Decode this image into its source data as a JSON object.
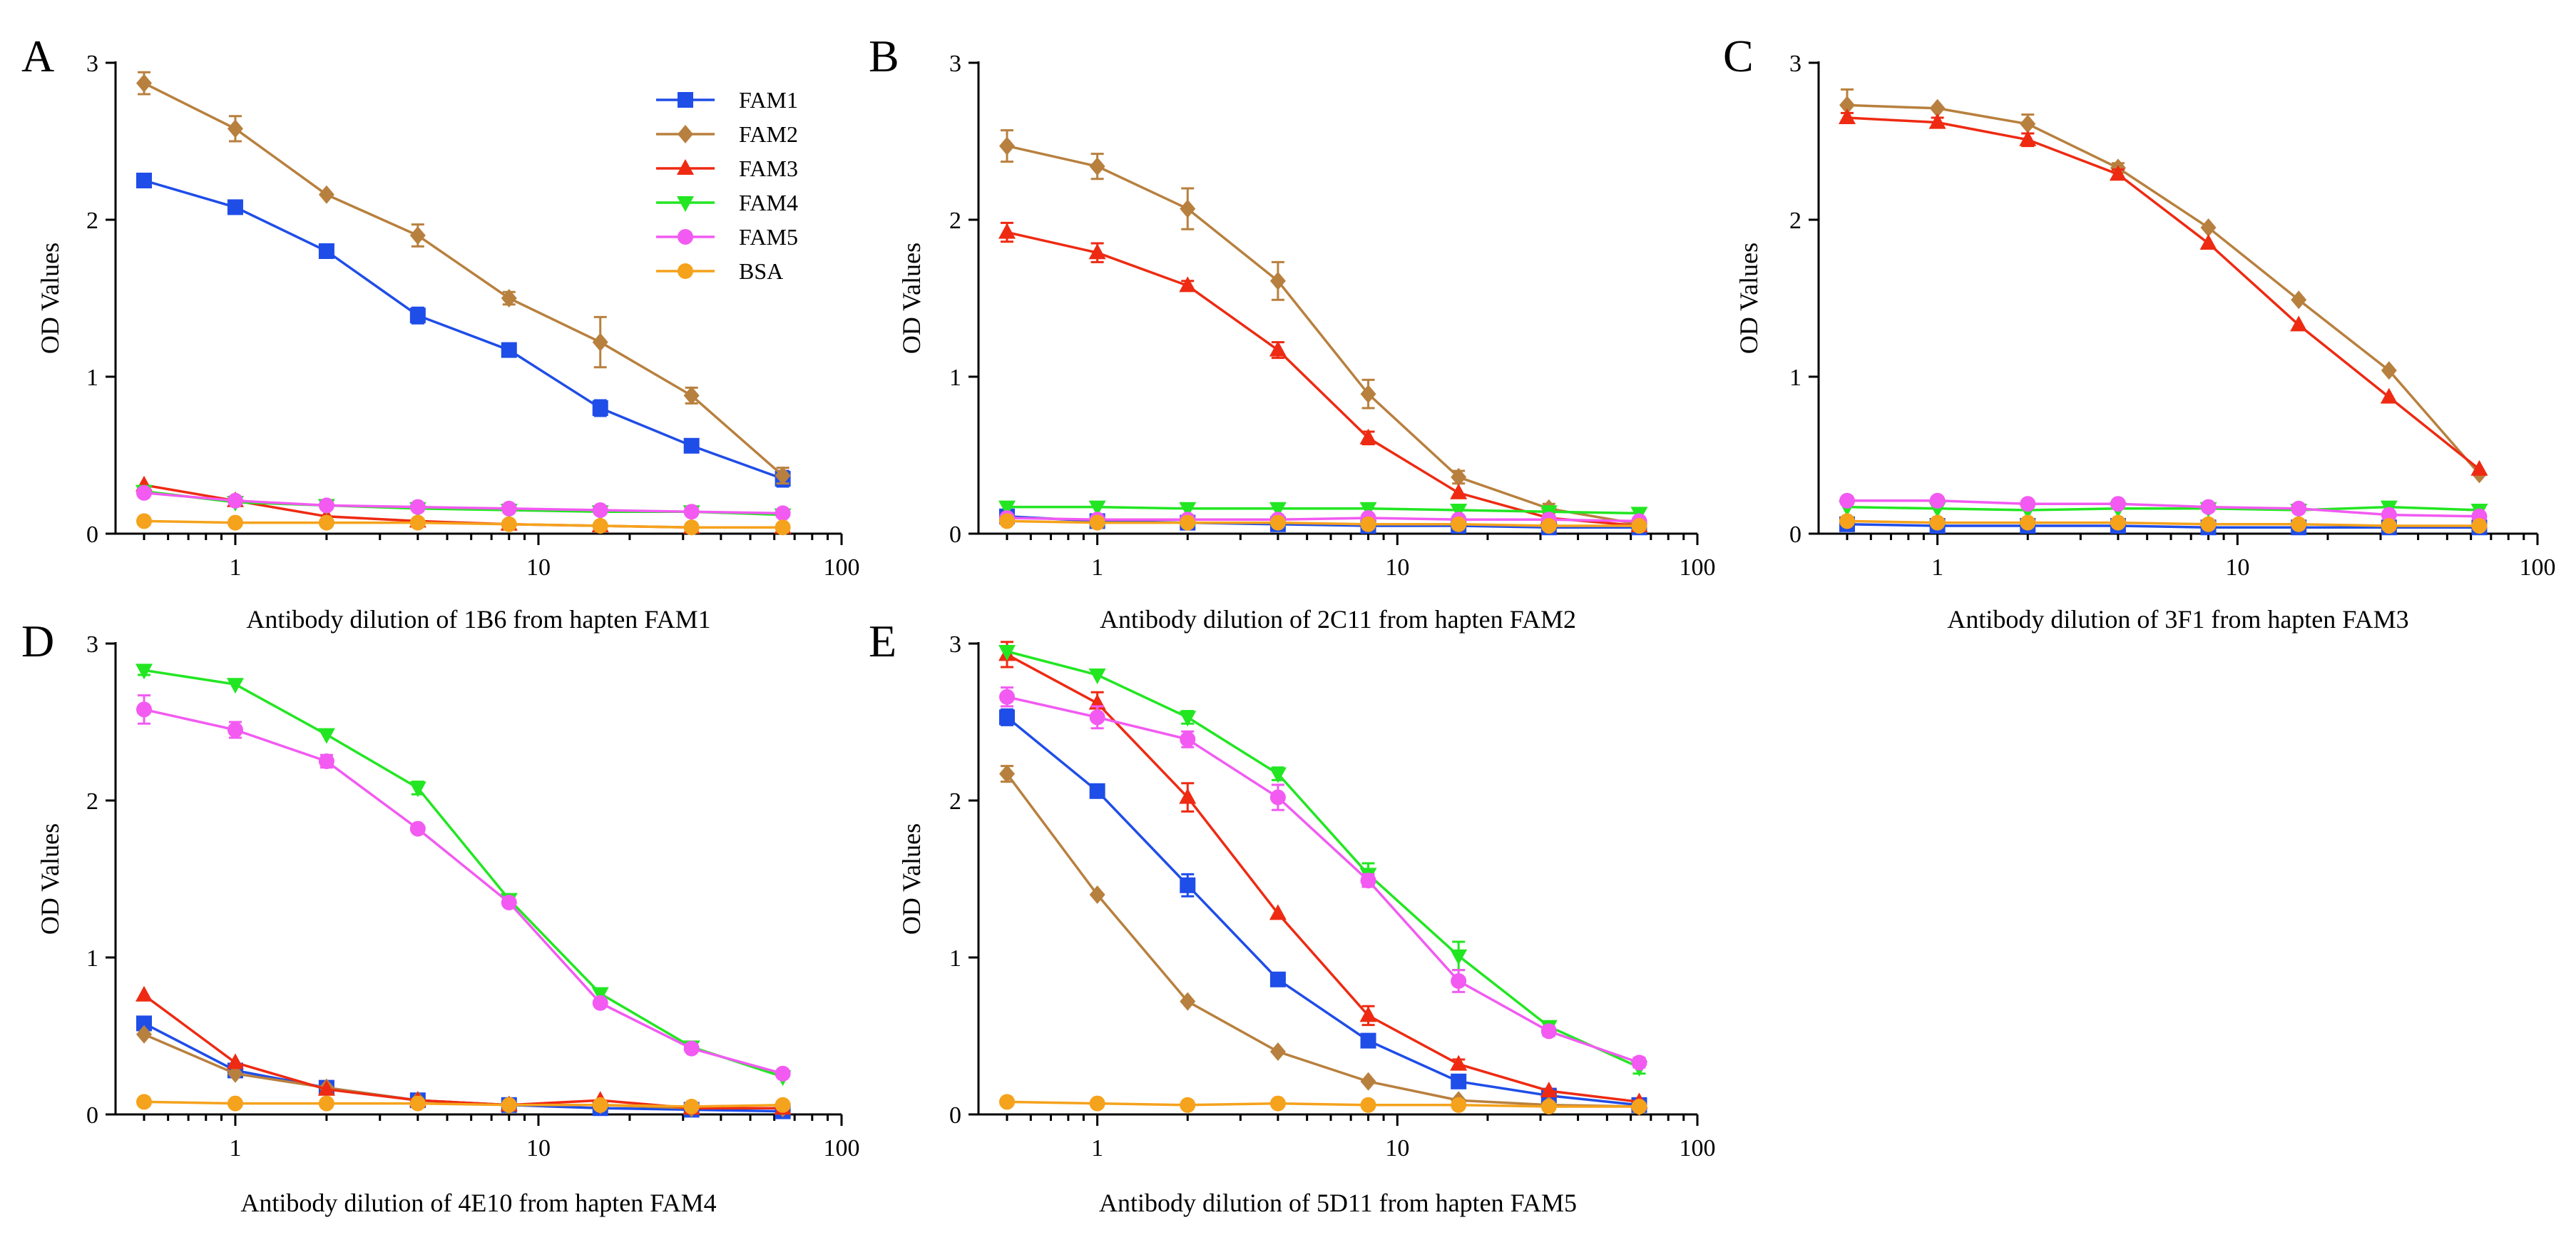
{
  "colors": {
    "FAM1": "#1f4de8",
    "FAM2": "#b8803e",
    "FAM3": "#ee2a12",
    "FAM4": "#22e622",
    "FAM5": "#f25af2",
    "BSA": "#f5a21c"
  },
  "legend": [
    {
      "name": "FAM1",
      "marker": "square"
    },
    {
      "name": "FAM2",
      "marker": "diamond"
    },
    {
      "name": "FAM3",
      "marker": "triangle"
    },
    {
      "name": "FAM4",
      "marker": "triangle-down"
    },
    {
      "name": "FAM5",
      "marker": "circle"
    },
    {
      "name": "BSA",
      "marker": "circle"
    }
  ],
  "chart_data": [
    {
      "panel": "A",
      "type": "line",
      "xscale": "log",
      "xlim": [
        0.5,
        100
      ],
      "ylim": [
        0,
        3
      ],
      "xticks": [
        "1",
        "10",
        "100"
      ],
      "yticks": [
        "0",
        "1",
        "2",
        "3"
      ],
      "xlabel": "Antibody dilution of 1B6 from hapten FAM1",
      "ylabel": "OD Values",
      "x": [
        0.5,
        1,
        2,
        4,
        8,
        16,
        32,
        64
      ],
      "series": [
        {
          "name": "FAM1",
          "values": [
            2.25,
            2.08,
            1.8,
            1.39,
            1.17,
            0.8,
            0.56,
            0.35
          ],
          "err": [
            0.02,
            0.02,
            0.02,
            0.05,
            0.04,
            0.05,
            0.02,
            0.05
          ]
        },
        {
          "name": "FAM2",
          "values": [
            2.87,
            2.58,
            2.16,
            1.9,
            1.5,
            1.22,
            0.88,
            0.37
          ],
          "err": [
            0.07,
            0.08,
            0.02,
            0.07,
            0.04,
            0.16,
            0.05,
            0.05
          ]
        },
        {
          "name": "FAM3",
          "values": [
            0.31,
            0.21,
            0.11,
            0.08,
            0.06,
            0.05,
            0.04,
            0.04
          ],
          "err": [
            0.02,
            0.01,
            0.01,
            0.01,
            0.01,
            0.01,
            0.01,
            0.01
          ]
        },
        {
          "name": "FAM4",
          "values": [
            0.27,
            0.2,
            0.18,
            0.16,
            0.15,
            0.14,
            0.14,
            0.12
          ],
          "err": [
            0.01,
            0.01,
            0.01,
            0.01,
            0.01,
            0.01,
            0.01,
            0.01
          ]
        },
        {
          "name": "FAM5",
          "values": [
            0.26,
            0.21,
            0.18,
            0.17,
            0.16,
            0.15,
            0.14,
            0.13
          ],
          "err": [
            0.01,
            0.01,
            0.01,
            0.01,
            0.01,
            0.01,
            0.01,
            0.01
          ]
        },
        {
          "name": "BSA",
          "values": [
            0.08,
            0.07,
            0.07,
            0.07,
            0.06,
            0.05,
            0.04,
            0.04
          ],
          "err": [
            0,
            0,
            0,
            0,
            0,
            0,
            0,
            0
          ]
        }
      ],
      "show_legend": true
    },
    {
      "panel": "B",
      "type": "line",
      "xscale": "log",
      "xlim": [
        0.5,
        100
      ],
      "ylim": [
        0,
        3
      ],
      "xticks": [
        "1",
        "10",
        "100"
      ],
      "yticks": [
        "0",
        "1",
        "2",
        "3"
      ],
      "xlabel": "Antibody dilution of 2C11 from hapten FAM2",
      "ylabel": "OD Values",
      "x": [
        0.5,
        1,
        2,
        4,
        8,
        16,
        32,
        64
      ],
      "series": [
        {
          "name": "FAM1",
          "values": [
            0.11,
            0.08,
            0.07,
            0.06,
            0.05,
            0.05,
            0.04,
            0.04
          ],
          "err": [
            0.01,
            0.01,
            0.01,
            0.01,
            0.01,
            0.01,
            0.01,
            0.01
          ]
        },
        {
          "name": "FAM2",
          "values": [
            2.47,
            2.34,
            2.07,
            1.61,
            0.89,
            0.36,
            0.16,
            0.06
          ],
          "err": [
            0.1,
            0.08,
            0.13,
            0.12,
            0.09,
            0.04,
            0.03,
            0.01
          ]
        },
        {
          "name": "FAM3",
          "values": [
            1.92,
            1.79,
            1.58,
            1.17,
            0.61,
            0.26,
            0.1,
            0.05
          ],
          "err": [
            0.06,
            0.06,
            0.03,
            0.05,
            0.04,
            0.02,
            0.01,
            0.01
          ]
        },
        {
          "name": "FAM4",
          "values": [
            0.17,
            0.17,
            0.16,
            0.16,
            0.16,
            0.15,
            0.14,
            0.13
          ],
          "err": [
            0.01,
            0.01,
            0.01,
            0.01,
            0.01,
            0.01,
            0.01,
            0.01
          ]
        },
        {
          "name": "FAM5",
          "values": [
            0.1,
            0.09,
            0.09,
            0.09,
            0.1,
            0.09,
            0.09,
            0.08
          ],
          "err": [
            0.01,
            0.01,
            0.01,
            0.01,
            0.01,
            0.01,
            0.01,
            0.01
          ]
        },
        {
          "name": "BSA",
          "values": [
            0.08,
            0.07,
            0.07,
            0.07,
            0.06,
            0.06,
            0.05,
            0.05
          ],
          "err": [
            0,
            0,
            0,
            0,
            0,
            0,
            0,
            0
          ]
        }
      ],
      "show_legend": false
    },
    {
      "panel": "C",
      "type": "line",
      "xscale": "log",
      "xlim": [
        0.5,
        100
      ],
      "ylim": [
        0,
        3
      ],
      "xticks": [
        "1",
        "10",
        "100"
      ],
      "yticks": [
        "0",
        "1",
        "2",
        "3"
      ],
      "xlabel": "Antibody dilution of 3F1 from hapten FAM3",
      "ylabel": "OD Values",
      "x": [
        0.5,
        1,
        2,
        4,
        8,
        16,
        32,
        64
      ],
      "series": [
        {
          "name": "FAM1",
          "values": [
            0.06,
            0.05,
            0.05,
            0.05,
            0.04,
            0.04,
            0.04,
            0.04
          ],
          "err": [
            0,
            0,
            0,
            0,
            0,
            0,
            0,
            0
          ]
        },
        {
          "name": "FAM2",
          "values": [
            2.73,
            2.71,
            2.61,
            2.33,
            1.95,
            1.49,
            1.04,
            0.38
          ],
          "err": [
            0.1,
            0.02,
            0.06,
            0.03,
            0.02,
            0.02,
            0.02,
            0.02
          ]
        },
        {
          "name": "FAM3",
          "values": [
            2.65,
            2.62,
            2.51,
            2.29,
            1.85,
            1.33,
            0.87,
            0.41
          ],
          "err": [
            0.03,
            0.03,
            0.04,
            0.03,
            0.02,
            0.02,
            0.02,
            0.02
          ]
        },
        {
          "name": "FAM4",
          "values": [
            0.17,
            0.16,
            0.15,
            0.16,
            0.16,
            0.15,
            0.17,
            0.15
          ],
          "err": [
            0.01,
            0.01,
            0.01,
            0.01,
            0.01,
            0.01,
            0.01,
            0.01
          ]
        },
        {
          "name": "FAM5",
          "values": [
            0.21,
            0.21,
            0.19,
            0.19,
            0.17,
            0.16,
            0.12,
            0.11
          ],
          "err": [
            0.01,
            0.01,
            0.01,
            0.01,
            0.01,
            0.01,
            0.01,
            0.01
          ]
        },
        {
          "name": "BSA",
          "values": [
            0.08,
            0.07,
            0.07,
            0.07,
            0.06,
            0.06,
            0.05,
            0.05
          ],
          "err": [
            0,
            0,
            0,
            0,
            0,
            0,
            0,
            0
          ]
        }
      ],
      "show_legend": false
    },
    {
      "panel": "D",
      "type": "line",
      "xscale": "log",
      "xlim": [
        0.5,
        100
      ],
      "ylim": [
        0,
        3
      ],
      "xticks": [
        "1",
        "10",
        "100"
      ],
      "yticks": [
        "0",
        "1",
        "2",
        "3"
      ],
      "xlabel": "Antibody dilution of 4E10 from hapten FAM4",
      "ylabel": "OD Values",
      "x": [
        0.5,
        1,
        2,
        4,
        8,
        16,
        32,
        64
      ],
      "series": [
        {
          "name": "FAM1",
          "values": [
            0.58,
            0.28,
            0.17,
            0.09,
            0.06,
            0.04,
            0.03,
            0.02
          ],
          "err": [
            0.02,
            0.02,
            0.01,
            0.01,
            0.01,
            0.01,
            0.01,
            0.01
          ]
        },
        {
          "name": "FAM2",
          "values": [
            0.51,
            0.26,
            0.17,
            0.09,
            0.06,
            0.06,
            0.04,
            0.04
          ],
          "err": [
            0.02,
            0.01,
            0.01,
            0.01,
            0.01,
            0.01,
            0.01,
            0.01
          ]
        },
        {
          "name": "FAM3",
          "values": [
            0.76,
            0.33,
            0.16,
            0.09,
            0.06,
            0.09,
            0.04,
            0.04
          ],
          "err": [
            0.02,
            0.01,
            0.01,
            0.01,
            0.01,
            0.01,
            0.01,
            0.01
          ]
        },
        {
          "name": "FAM4",
          "values": [
            2.83,
            2.74,
            2.42,
            2.08,
            1.37,
            0.77,
            0.43,
            0.24
          ],
          "err": [
            0.03,
            0.02,
            0.02,
            0.04,
            0.02,
            0.02,
            0.02,
            0.02
          ]
        },
        {
          "name": "FAM5",
          "values": [
            2.58,
            2.45,
            2.25,
            1.82,
            1.35,
            0.71,
            0.42,
            0.26
          ],
          "err": [
            0.09,
            0.05,
            0.04,
            0.02,
            0.02,
            0.02,
            0.02,
            0.02
          ]
        },
        {
          "name": "BSA",
          "values": [
            0.08,
            0.07,
            0.07,
            0.07,
            0.06,
            0.06,
            0.05,
            0.06
          ],
          "err": [
            0,
            0,
            0,
            0,
            0,
            0,
            0,
            0
          ]
        }
      ],
      "show_legend": false
    },
    {
      "panel": "E",
      "type": "line",
      "xscale": "log",
      "xlim": [
        0.5,
        100
      ],
      "ylim": [
        0,
        3
      ],
      "xticks": [
        "1",
        "10",
        "100"
      ],
      "yticks": [
        "0",
        "1",
        "2",
        "3"
      ],
      "xlabel": "Antibody dilution of 5D11 from hapten FAM5",
      "ylabel": "OD Values",
      "x": [
        0.5,
        1,
        2,
        4,
        8,
        16,
        32,
        64
      ],
      "series": [
        {
          "name": "FAM1",
          "values": [
            2.53,
            2.06,
            1.46,
            0.86,
            0.47,
            0.21,
            0.12,
            0.06
          ],
          "err": [
            0.05,
            0.04,
            0.07,
            0.04,
            0.04,
            0.03,
            0.02,
            0.01
          ]
        },
        {
          "name": "FAM2",
          "values": [
            2.17,
            1.4,
            0.72,
            0.4,
            0.21,
            0.09,
            0.06,
            0.05
          ],
          "err": [
            0.05,
            0.02,
            0.02,
            0.02,
            0.01,
            0.01,
            0.01,
            0.01
          ]
        },
        {
          "name": "FAM3",
          "values": [
            2.93,
            2.62,
            2.02,
            1.28,
            0.63,
            0.32,
            0.15,
            0.08
          ],
          "err": [
            0.08,
            0.07,
            0.09,
            0.02,
            0.06,
            0.03,
            0.02,
            0.01
          ]
        },
        {
          "name": "FAM4",
          "values": [
            2.95,
            2.8,
            2.53,
            2.17,
            1.53,
            1.01,
            0.56,
            0.3
          ],
          "err": [
            0.02,
            0.02,
            0.04,
            0.04,
            0.07,
            0.09,
            0.03,
            0.04
          ]
        },
        {
          "name": "FAM5",
          "values": [
            2.66,
            2.53,
            2.39,
            2.02,
            1.49,
            0.85,
            0.53,
            0.33
          ],
          "err": [
            0.06,
            0.07,
            0.05,
            0.08,
            0.04,
            0.07,
            0.03,
            0.03
          ]
        },
        {
          "name": "BSA",
          "values": [
            0.08,
            0.07,
            0.06,
            0.07,
            0.06,
            0.06,
            0.05,
            0.05
          ],
          "err": [
            0,
            0,
            0,
            0,
            0,
            0,
            0,
            0
          ]
        }
      ],
      "show_legend": false
    }
  ]
}
